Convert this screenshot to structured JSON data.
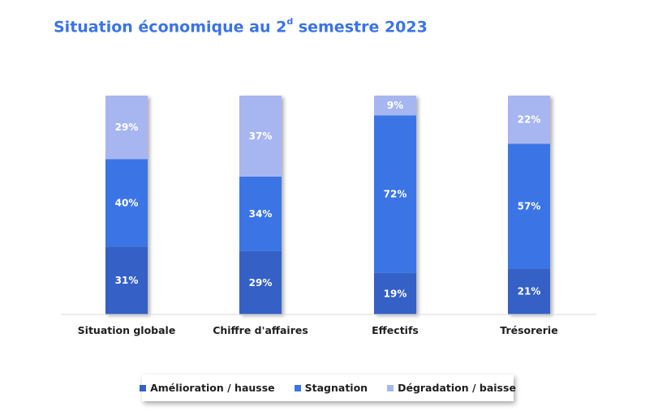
{
  "title": {
    "main": "Situation économique au 2",
    "sup": "d",
    "rest": " semestre 2023"
  },
  "colors": {
    "amelioration": "#3461c6",
    "stagnation": "#3b74e5",
    "degradation": "#a7b6f0",
    "title": "#3b73e8"
  },
  "chart_data": {
    "type": "bar",
    "stacked": true,
    "percent": true,
    "categories": [
      "Situation globale",
      "Chiffre d'affaires",
      "Effectifs",
      "Trésorerie"
    ],
    "series": [
      {
        "name": "Amélioration / hausse",
        "values": [
          31,
          29,
          19,
          21
        ],
        "labels": [
          "31%",
          "29%",
          "19%",
          "21%"
        ]
      },
      {
        "name": "Stagnation",
        "values": [
          40,
          34,
          72,
          57
        ],
        "labels": [
          "40%",
          "34%",
          "72%",
          "57%"
        ]
      },
      {
        "name": "Dégradation / baisse",
        "values": [
          29,
          37,
          9,
          22
        ],
        "labels": [
          "29%",
          "37%",
          "9%",
          "22%"
        ]
      }
    ],
    "ylim": [
      0,
      100
    ],
    "grid": false,
    "legend": "bottom"
  }
}
